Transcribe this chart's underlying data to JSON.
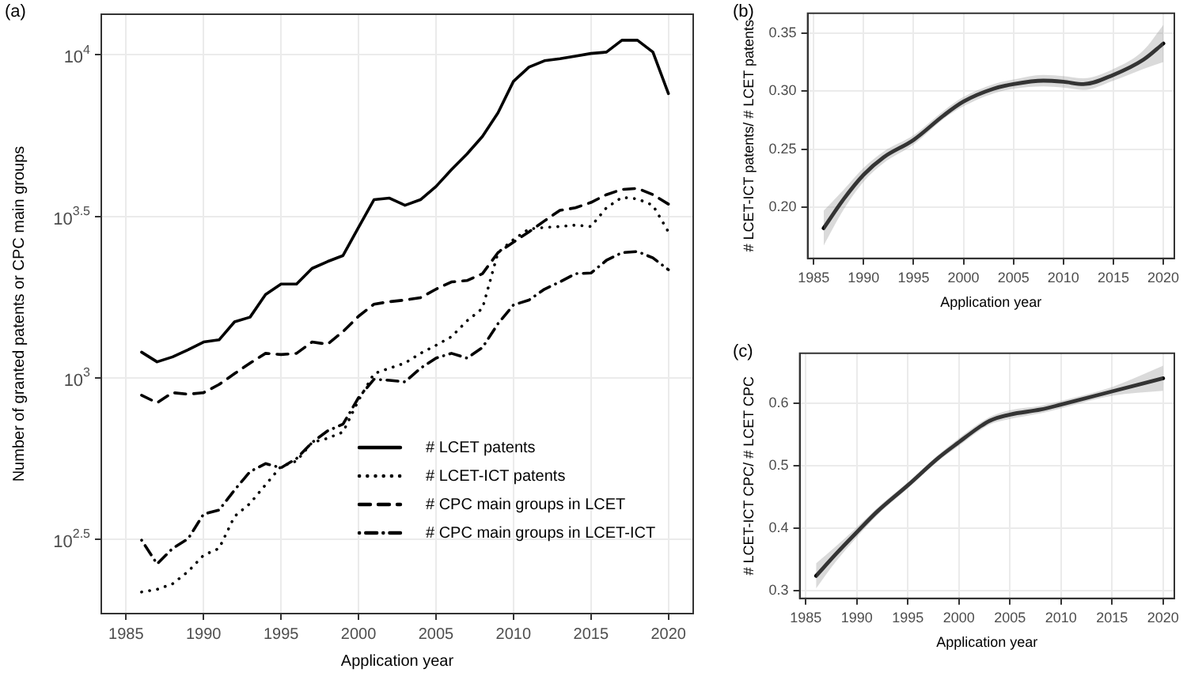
{
  "chart_data": [
    {
      "type": "line",
      "title": "(a)",
      "xlabel": "Application year",
      "ylabel": "Number of granted patents or CPC main groups",
      "log": true,
      "grid": true,
      "legend": "bottom right",
      "xlim": [
        1983.4,
        2021.6
      ],
      "xticks": [
        1985,
        1990,
        1995,
        2000,
        2005,
        2010,
        2015,
        2020
      ],
      "ylim": [
        186,
        13360
      ],
      "yticks": [
        {
          "value": 316.23,
          "label": "10$^{2.5}$"
        },
        {
          "value": 1000,
          "label": "10$^{3}$"
        },
        {
          "value": 3162.3,
          "label": "10$^{3.5}$"
        },
        {
          "value": 10000,
          "label": "10$^{4}$"
        }
      ],
      "x": [
        1986,
        1987,
        1988,
        1989,
        1990,
        1991,
        1992,
        1993,
        1994,
        1995,
        1996,
        1997,
        1998,
        1999,
        2000,
        2001,
        2002,
        2003,
        2004,
        2005,
        2006,
        2007,
        2008,
        2009,
        2010,
        2011,
        2012,
        2013,
        2014,
        2015,
        2016,
        2017,
        2018,
        2019,
        2020
      ],
      "series": [
        {
          "name": "# LCET patents",
          "color": "#000000",
          "line_style": "solid",
          "values": [
            1200,
            1120,
            1160,
            1220,
            1290,
            1310,
            1490,
            1540,
            1810,
            1950,
            1950,
            2180,
            2290,
            2390,
            2920,
            3560,
            3600,
            3420,
            3560,
            3910,
            4410,
            4930,
            5590,
            6610,
            8280,
            9160,
            9590,
            9730,
            9910,
            10100,
            10200,
            11100,
            11100,
            10200,
            7590
          ]
        },
        {
          "name": "# LCET-ICT patents",
          "color": "#000000",
          "line_style": "dotted",
          "values": [
            217,
            221,
            230,
            251,
            282,
            296,
            372,
            408,
            466,
            531,
            552,
            630,
            649,
            679,
            851,
            1030,
            1070,
            1110,
            1190,
            1260,
            1340,
            1500,
            1640,
            2440,
            2680,
            2890,
            2920,
            2940,
            2970,
            2940,
            3360,
            3620,
            3580,
            3420,
            2830
          ]
        },
        {
          "name": "# CPC main groups in LCET",
          "color": "#000000",
          "line_style": "dashed",
          "values": [
            883,
            836,
            899,
            889,
            899,
            953,
            1030,
            1110,
            1190,
            1180,
            1190,
            1290,
            1270,
            1390,
            1550,
            1690,
            1720,
            1740,
            1770,
            1880,
            1980,
            2000,
            2100,
            2440,
            2630,
            2830,
            3060,
            3300,
            3360,
            3490,
            3690,
            3830,
            3860,
            3690,
            3450
          ]
        },
        {
          "name": "# CPC main groups in LCET-ICT",
          "color": "#000000",
          "line_style": "dashdot",
          "values": [
            314,
            265,
            296,
            317,
            378,
            389,
            449,
            512,
            542,
            526,
            562,
            630,
            684,
            718,
            867,
            989,
            982,
            971,
            1070,
            1150,
            1190,
            1150,
            1240,
            1470,
            1680,
            1740,
            1880,
            1980,
            2100,
            2110,
            2310,
            2440,
            2460,
            2350,
            2160
          ]
        }
      ]
    },
    {
      "type": "line",
      "title": "(b)",
      "xlabel": "Application year",
      "ylabel": "# LCET-ICT patents/ # LCET patents",
      "grid": true,
      "xlim": [
        1984.4,
        2021.1
      ],
      "xticks": [
        1985,
        1990,
        1995,
        2000,
        2005,
        2010,
        2015,
        2020
      ],
      "ylim": [
        0.156,
        0.367
      ],
      "yticks": [
        {
          "value": 0.2,
          "label": "0.20"
        },
        {
          "value": 0.25,
          "label": "0.25"
        },
        {
          "value": 0.3,
          "label": "0.30"
        },
        {
          "value": 0.35,
          "label": "0.35"
        }
      ],
      "x": [
        1986,
        1988,
        1990,
        1992,
        1995,
        1998,
        2000,
        2003,
        2005,
        2008,
        2010,
        2012,
        2015,
        2018,
        2020
      ],
      "series": [
        {
          "color": "#000000",
          "values": [
            0.182,
            0.207,
            0.228,
            0.243,
            0.258,
            0.279,
            0.291,
            0.302,
            0.306,
            0.309,
            0.308,
            0.306,
            0.314,
            0.327,
            0.341
          ],
          "lower": [
            0.167,
            0.198,
            0.222,
            0.238,
            0.254,
            0.276,
            0.287,
            0.298,
            0.302,
            0.304,
            0.303,
            0.301,
            0.309,
            0.319,
            0.325
          ],
          "upper": [
            0.197,
            0.215,
            0.234,
            0.248,
            0.262,
            0.283,
            0.295,
            0.306,
            0.31,
            0.314,
            0.313,
            0.311,
            0.319,
            0.335,
            0.357
          ]
        }
      ]
    },
    {
      "type": "line",
      "title": "(c)",
      "xlabel": "Application year",
      "ylabel": "# LCET-ICT CPC/ # LCET CPC",
      "grid": true,
      "xlim": [
        1984.4,
        2021.1
      ],
      "xticks": [
        1985,
        1990,
        1995,
        2000,
        2005,
        2010,
        2015,
        2020
      ],
      "ylim": [
        0.288,
        0.68
      ],
      "yticks": [
        0.3,
        0.4,
        0.5,
        0.6
      ],
      "x": [
        1986,
        1988,
        1990,
        1992,
        1995,
        1998,
        2000,
        2002,
        2003,
        2005,
        2008,
        2010,
        2015,
        2020
      ],
      "series": [
        {
          "color": "#000000",
          "values": [
            0.324,
            0.36,
            0.394,
            0.427,
            0.469,
            0.513,
            0.538,
            0.562,
            0.572,
            0.582,
            0.59,
            0.598,
            0.619,
            0.64
          ],
          "lower": [
            0.304,
            0.348,
            0.386,
            0.421,
            0.464,
            0.508,
            0.532,
            0.556,
            0.566,
            0.575,
            0.584,
            0.592,
            0.612,
            0.62
          ],
          "upper": [
            0.344,
            0.372,
            0.402,
            0.433,
            0.474,
            0.518,
            0.544,
            0.568,
            0.578,
            0.589,
            0.596,
            0.604,
            0.626,
            0.66
          ]
        }
      ]
    }
  ]
}
